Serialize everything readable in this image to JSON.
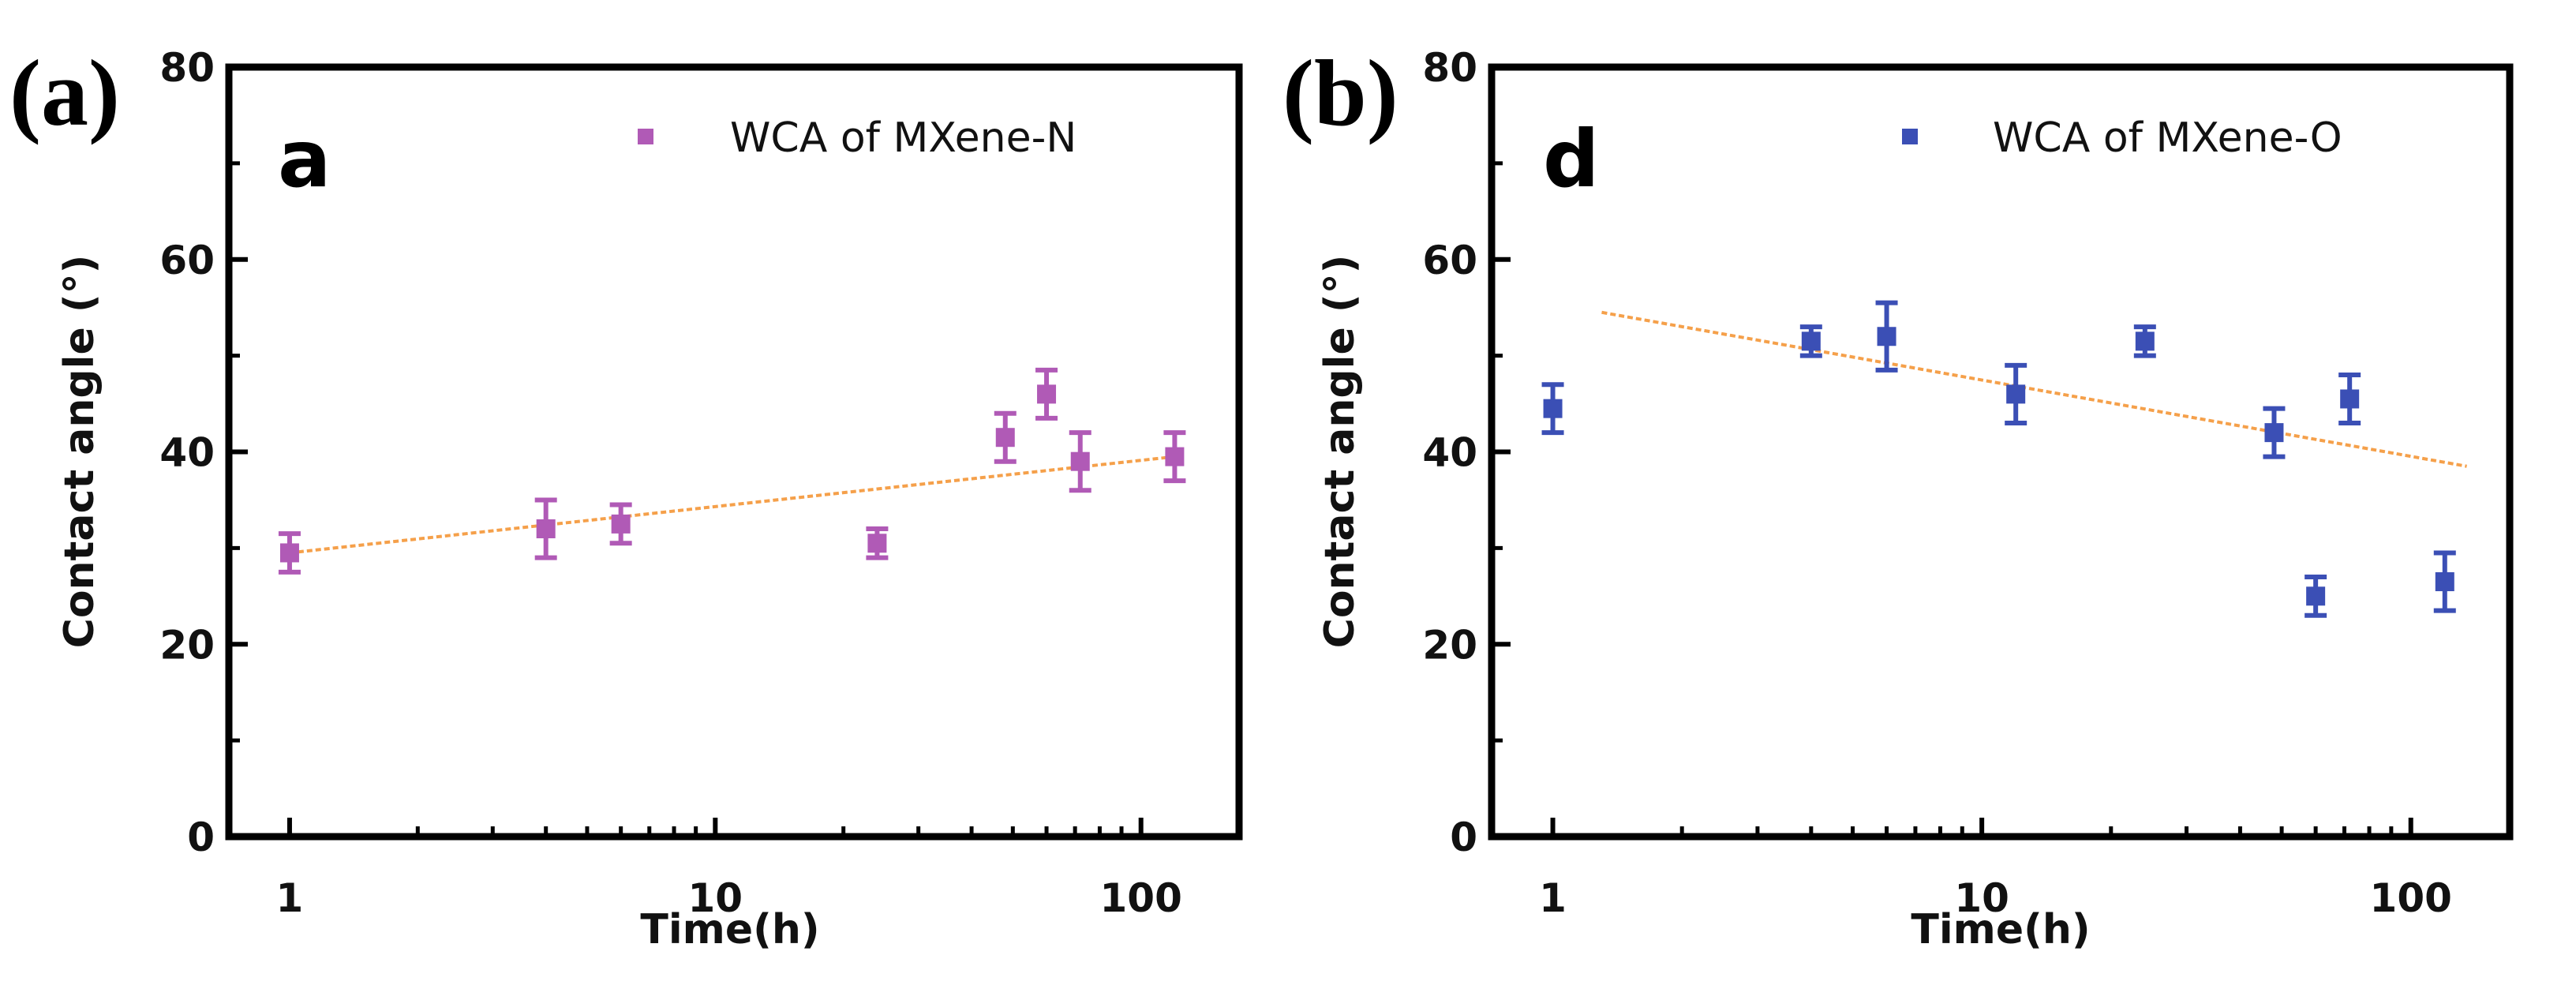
{
  "figure": {
    "panel_tags": [
      "(a)",
      "(b)"
    ]
  },
  "chart_data": [
    {
      "type": "scatter",
      "panel_tag": "(a)",
      "panel_letter": "a",
      "xlabel": "Time(h)",
      "ylabel": "Contact angle (°)",
      "xscale": "log",
      "xlim": [
        0.72,
        170
      ],
      "ylim": [
        0,
        80
      ],
      "xticks": [
        1,
        10,
        100
      ],
      "xtick_labels": [
        "1",
        "10",
        "100"
      ],
      "yticks": [
        0,
        20,
        40,
        60,
        80
      ],
      "ytick_labels": [
        "0",
        "20",
        "40",
        "60",
        "80"
      ],
      "legend_position": "top-right",
      "series": [
        {
          "name": "WCA of MXene-N",
          "color": "#b05ab6",
          "x": [
            1,
            4,
            6,
            24,
            48,
            60,
            72,
            120
          ],
          "y": [
            29.5,
            32,
            32.5,
            30.5,
            41.5,
            46,
            39,
            39.5
          ],
          "yerr": [
            2,
            3,
            2,
            1.5,
            2.5,
            2.5,
            3,
            2.5
          ]
        }
      ],
      "trend_line": {
        "color": "#f5a04a",
        "x": [
          1,
          120
        ],
        "y": [
          29.5,
          39.5
        ]
      }
    },
    {
      "type": "scatter",
      "panel_tag": "(b)",
      "panel_letter": "d",
      "xlabel": "Time(h)",
      "ylabel": "Contact angle (°)",
      "xscale": "log",
      "xlim": [
        0.72,
        170
      ],
      "ylim": [
        0,
        80
      ],
      "xticks": [
        1,
        10,
        100
      ],
      "xtick_labels": [
        "1",
        "10",
        "100"
      ],
      "yticks": [
        0,
        20,
        40,
        60,
        80
      ],
      "ytick_labels": [
        "0",
        "20",
        "40",
        "60",
        "80"
      ],
      "legend_position": "top-right",
      "series": [
        {
          "name": "WCA of MXene-O",
          "color": "#3b4fb5",
          "x": [
            1,
            4,
            6,
            12,
            24,
            48,
            60,
            72,
            120
          ],
          "y": [
            44.5,
            51.5,
            52,
            46,
            51.5,
            42,
            25,
            45.5,
            26.5
          ],
          "yerr": [
            2.5,
            1.5,
            3.5,
            3,
            1.5,
            2.5,
            2,
            2.5,
            3
          ]
        }
      ],
      "trend_line": {
        "color": "#f5a04a",
        "x": [
          1.3,
          135
        ],
        "y": [
          54.5,
          38.5
        ]
      }
    }
  ]
}
